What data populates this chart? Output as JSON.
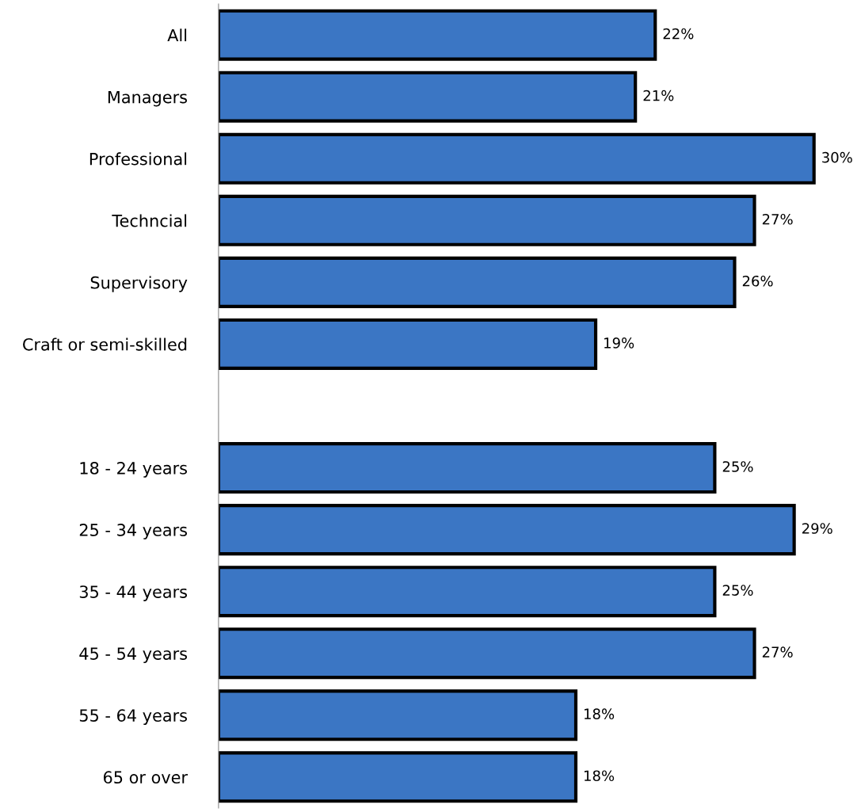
{
  "chart_data": {
    "type": "bar",
    "orientation": "horizontal",
    "categories": [
      "All",
      "Managers",
      "Professional",
      "Techncial",
      "Supervisory",
      "Craft or semi-skilled",
      null,
      "18 - 24 years",
      "25 - 34 years",
      "35 - 44 years",
      "45 - 54 years",
      "55 - 64 years",
      "65 or over"
    ],
    "values": [
      22,
      21,
      30,
      27,
      26,
      19,
      null,
      25,
      29,
      25,
      27,
      18,
      18
    ],
    "value_labels": [
      "22%",
      "21%",
      "30%",
      "27%",
      "26%",
      "19%",
      null,
      "25%",
      "29%",
      "25%",
      "27%",
      "18%",
      "18%"
    ],
    "color": "#3b76c4",
    "grid": false,
    "legend": false,
    "tick_labels": "y"
  }
}
